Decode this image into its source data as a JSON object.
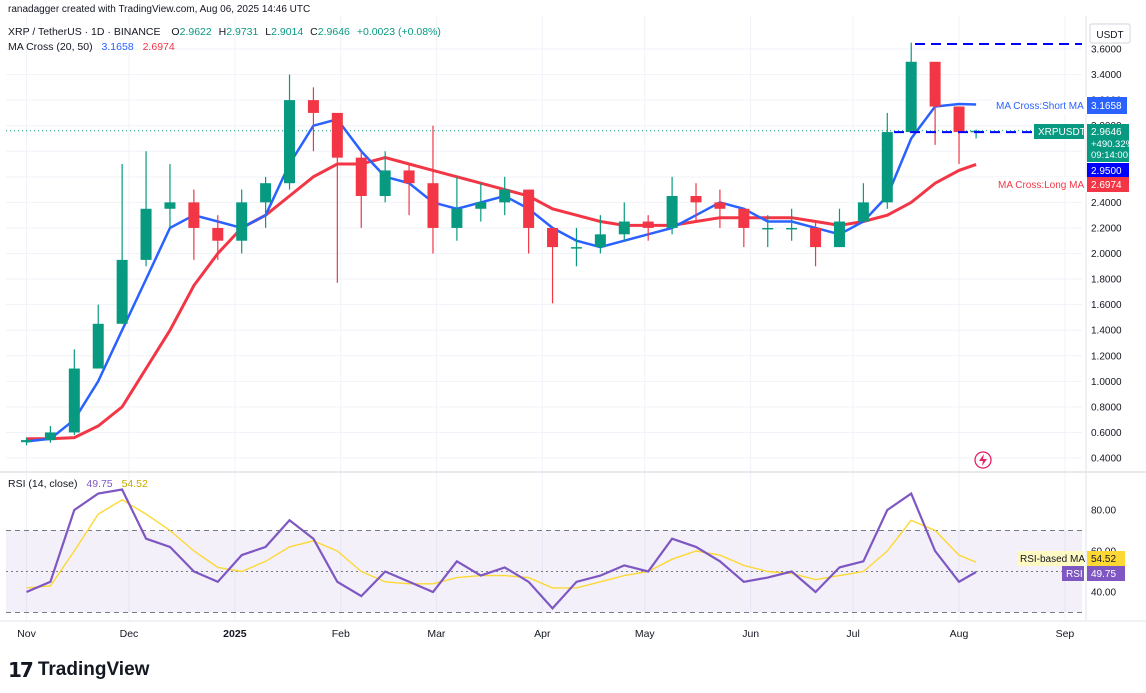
{
  "header": {
    "created_by": "ranadagger created with TradingView.com, Aug 06, 2025 14:46 UTC",
    "symbol": "XRP / TetherUS · 1D · BINANCE",
    "ohlc": {
      "o_label": "O",
      "o": "2.9622",
      "h_label": "H",
      "h": "2.9731",
      "l_label": "L",
      "l": "2.9014",
      "c_label": "C",
      "c": "2.9646",
      "change": "+0.0023 (+0.08%)"
    },
    "ma_indicator": {
      "name": "MA Cross (20, 50)",
      "short": "3.1658",
      "long": "2.6974"
    },
    "rsi_indicator": {
      "name": "RSI (14, close)",
      "rsi": "49.75",
      "ma": "54.52"
    }
  },
  "price_axis": {
    "currency": "USDT",
    "ticks": [
      "3.6000",
      "3.4000",
      "3.2000",
      "3.0000",
      "2.8000",
      "2.6000",
      "2.4000",
      "2.2000",
      "2.0000",
      "1.8000",
      "1.6000",
      "1.4000",
      "1.2000",
      "1.0000",
      "0.8000",
      "0.6000",
      "0.4000"
    ]
  },
  "badges": {
    "short_ma_label": "MA Cross:Short MA",
    "short_ma_value": "3.1658",
    "symbol_label": "XRPUSDT",
    "price": "2.9646",
    "pct": "+490.32%",
    "countdown": "09:14:00",
    "level": "2.9500",
    "long_ma_label": "MA Cross:Long MA",
    "long_ma_value": "2.6974",
    "rsi_ma_label": "RSI-based MA",
    "rsi_ma_value": "54.52",
    "rsi_label": "RSI",
    "rsi_value": "49.75"
  },
  "rsi_axis": {
    "ticks": [
      "80.00",
      "60.00",
      "40.00"
    ]
  },
  "time_axis": {
    "labels": [
      "Nov",
      "Dec",
      "2025",
      "Feb",
      "Mar",
      "Apr",
      "May",
      "Jun",
      "Jul",
      "Aug",
      "Sep"
    ]
  },
  "brand": {
    "mark": "17",
    "name": "TradingView"
  },
  "colors": {
    "up": "#089981",
    "down": "#f23645",
    "short_ma": "#2962ff",
    "long_ma": "#f23645",
    "rsi": "#7e57c2",
    "rsi_ma": "#fdd835",
    "level_line": "#0000ff"
  },
  "chart_data": [
    {
      "type": "candlestick",
      "title": "XRP / TetherUS · 1D · BINANCE",
      "ylabel": "USDT",
      "ylim": [
        0.4,
        3.6
      ],
      "x": [
        "2024-11-01",
        "2024-11-08",
        "2024-11-15",
        "2024-11-22",
        "2024-11-29",
        "2024-12-06",
        "2024-12-13",
        "2024-12-20",
        "2024-12-27",
        "2025-01-03",
        "2025-01-10",
        "2025-01-17",
        "2025-01-24",
        "2025-01-31",
        "2025-02-07",
        "2025-02-14",
        "2025-02-21",
        "2025-02-28",
        "2025-03-07",
        "2025-03-14",
        "2025-03-21",
        "2025-03-28",
        "2025-04-04",
        "2025-04-11",
        "2025-04-18",
        "2025-04-25",
        "2025-05-02",
        "2025-05-09",
        "2025-05-16",
        "2025-05-23",
        "2025-05-30",
        "2025-06-06",
        "2025-06-13",
        "2025-06-20",
        "2025-06-27",
        "2025-07-04",
        "2025-07-11",
        "2025-07-18",
        "2025-07-25",
        "2025-08-01",
        "2025-08-06"
      ],
      "close": [
        0.54,
        0.6,
        1.1,
        1.45,
        1.95,
        2.35,
        2.4,
        2.2,
        2.1,
        2.4,
        2.55,
        3.2,
        3.1,
        2.75,
        2.45,
        2.65,
        2.55,
        2.2,
        2.35,
        2.4,
        2.5,
        2.2,
        2.05,
        2.05,
        2.15,
        2.25,
        2.2,
        2.45,
        2.4,
        2.35,
        2.2,
        2.2,
        2.2,
        2.05,
        2.25,
        2.4,
        2.95,
        3.5,
        3.15,
        2.95,
        2.96
      ],
      "high": [
        0.56,
        0.65,
        1.25,
        1.6,
        2.7,
        2.8,
        2.7,
        2.5,
        2.3,
        2.5,
        2.6,
        3.4,
        3.3,
        3.0,
        2.8,
        2.8,
        2.7,
        3.0,
        2.6,
        2.55,
        2.6,
        2.5,
        2.2,
        2.2,
        2.3,
        2.4,
        2.3,
        2.6,
        2.55,
        2.5,
        2.35,
        2.3,
        2.35,
        2.25,
        2.35,
        2.55,
        3.1,
        3.65,
        3.3,
        3.05,
        2.97
      ],
      "low": [
        0.5,
        0.52,
        0.58,
        1.1,
        1.45,
        1.9,
        2.2,
        1.95,
        1.95,
        2.0,
        2.2,
        2.5,
        2.8,
        1.77,
        2.2,
        2.4,
        2.3,
        2.0,
        2.1,
        2.25,
        2.3,
        2.0,
        1.61,
        1.9,
        2.0,
        2.1,
        2.1,
        2.15,
        2.25,
        2.2,
        2.05,
        2.05,
        2.1,
        1.9,
        2.05,
        2.25,
        2.35,
        2.95,
        2.85,
        2.7,
        2.9
      ],
      "ma_short_20": [
        0.53,
        0.55,
        0.7,
        1.0,
        1.4,
        1.8,
        2.2,
        2.3,
        2.25,
        2.2,
        2.3,
        2.7,
        3.0,
        3.05,
        2.8,
        2.6,
        2.55,
        2.4,
        2.35,
        2.4,
        2.45,
        2.35,
        2.2,
        2.1,
        2.05,
        2.1,
        2.15,
        2.2,
        2.3,
        2.4,
        2.35,
        2.25,
        2.25,
        2.2,
        2.15,
        2.25,
        2.45,
        2.9,
        3.15,
        3.17,
        3.1658
      ],
      "ma_long_50": [
        0.55,
        0.55,
        0.56,
        0.65,
        0.8,
        1.1,
        1.4,
        1.75,
        2.0,
        2.2,
        2.3,
        2.45,
        2.6,
        2.7,
        2.7,
        2.75,
        2.7,
        2.65,
        2.6,
        2.55,
        2.5,
        2.45,
        2.35,
        2.3,
        2.25,
        2.22,
        2.22,
        2.22,
        2.25,
        2.28,
        2.28,
        2.28,
        2.28,
        2.25,
        2.22,
        2.25,
        2.3,
        2.4,
        2.55,
        2.65,
        2.6974
      ]
    },
    {
      "type": "line",
      "title": "RSI (14, close)",
      "ylim": [
        30,
        95
      ],
      "x": [
        "2024-11-01",
        "2024-11-08",
        "2024-11-15",
        "2024-11-22",
        "2024-11-29",
        "2024-12-06",
        "2024-12-13",
        "2024-12-20",
        "2024-12-27",
        "2025-01-03",
        "2025-01-10",
        "2025-01-17",
        "2025-01-24",
        "2025-01-31",
        "2025-02-07",
        "2025-02-14",
        "2025-02-21",
        "2025-02-28",
        "2025-03-07",
        "2025-03-14",
        "2025-03-21",
        "2025-03-28",
        "2025-04-04",
        "2025-04-11",
        "2025-04-18",
        "2025-04-25",
        "2025-05-02",
        "2025-05-09",
        "2025-05-16",
        "2025-05-23",
        "2025-05-30",
        "2025-06-06",
        "2025-06-13",
        "2025-06-20",
        "2025-06-27",
        "2025-07-04",
        "2025-07-11",
        "2025-07-18",
        "2025-07-25",
        "2025-08-01",
        "2025-08-06"
      ],
      "series": [
        {
          "name": "RSI",
          "values": [
            40,
            45,
            80,
            88,
            90,
            66,
            62,
            50,
            45,
            58,
            62,
            75,
            66,
            45,
            38,
            50,
            45,
            40,
            55,
            48,
            52,
            45,
            32,
            45,
            48,
            53,
            50,
            66,
            62,
            55,
            45,
            47,
            50,
            40,
            52,
            55,
            80,
            88,
            60,
            45,
            49.75
          ]
        },
        {
          "name": "RSI-based MA",
          "values": [
            42,
            43,
            60,
            78,
            85,
            78,
            70,
            60,
            52,
            50,
            55,
            62,
            65,
            60,
            50,
            45,
            44,
            44,
            47,
            48,
            48,
            47,
            42,
            42,
            45,
            48,
            50,
            56,
            60,
            58,
            53,
            50,
            49,
            46,
            48,
            50,
            60,
            75,
            70,
            58,
            54.52
          ]
        }
      ],
      "levels": [
        70,
        50,
        30
      ]
    }
  ]
}
